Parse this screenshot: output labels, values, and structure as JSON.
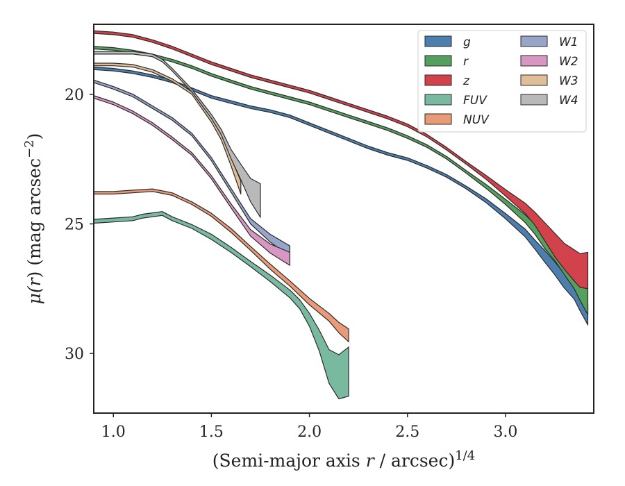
{
  "chart_data": {
    "type": "area",
    "xlabel": "(Semi-major axis r / arcsec)^{1/4}",
    "ylabel": "μ(r) (mag arcsec^{−2})",
    "xlabel_parts": [
      "(Semi-major axis ",
      "r",
      " / arcsec)",
      "1/4"
    ],
    "ylabel_parts": [
      "μ(",
      "r",
      ") (mag arcsec",
      "−2",
      ")"
    ],
    "xlim": [
      0.9,
      3.45
    ],
    "ylim": [
      32.3,
      17.3
    ],
    "y_inverted": true,
    "xticks": [
      1.0,
      1.5,
      2.0,
      2.5,
      3.0
    ],
    "xtick_labels": [
      "1.0",
      "1.5",
      "2.0",
      "2.5",
      "3.0"
    ],
    "yticks": [
      20,
      25,
      30
    ],
    "ytick_labels": [
      "20",
      "25",
      "30"
    ],
    "grid": false,
    "legend_position": "top-right",
    "legend_columns": 2,
    "series": [
      {
        "name": "g",
        "color": "#4c7fae",
        "x": [
          0.9,
          1.0,
          1.1,
          1.2,
          1.3,
          1.4,
          1.5,
          1.6,
          1.7,
          1.8,
          1.9,
          2.0,
          2.1,
          2.2,
          2.3,
          2.4,
          2.5,
          2.6,
          2.7,
          2.8,
          2.9,
          3.0,
          3.1,
          3.15,
          3.2,
          3.25,
          3.3,
          3.35,
          3.38,
          3.42
        ],
        "mu": [
          19.0,
          19.05,
          19.15,
          19.3,
          19.5,
          19.8,
          20.1,
          20.3,
          20.5,
          20.65,
          20.85,
          21.15,
          21.45,
          21.75,
          22.05,
          22.3,
          22.5,
          22.8,
          23.15,
          23.6,
          24.1,
          24.7,
          25.35,
          25.8,
          26.25,
          26.7,
          27.2,
          27.6,
          28.0,
          28.5
        ],
        "band": [
          0.1,
          0.1,
          0.1,
          0.1,
          0.1,
          0.1,
          0.1,
          0.1,
          0.1,
          0.1,
          0.1,
          0.1,
          0.1,
          0.1,
          0.1,
          0.1,
          0.1,
          0.1,
          0.1,
          0.1,
          0.15,
          0.2,
          0.3,
          0.35,
          0.45,
          0.5,
          0.55,
          0.6,
          0.7,
          0.8
        ]
      },
      {
        "name": "r",
        "color": "#55a05e",
        "x": [
          0.9,
          1.0,
          1.1,
          1.2,
          1.3,
          1.4,
          1.5,
          1.6,
          1.7,
          1.8,
          1.9,
          2.0,
          2.1,
          2.2,
          2.3,
          2.4,
          2.5,
          2.6,
          2.7,
          2.8,
          2.9,
          3.0,
          3.1,
          3.15,
          3.2,
          3.25,
          3.3,
          3.35,
          3.38,
          3.42
        ],
        "mu": [
          18.2,
          18.25,
          18.35,
          18.5,
          18.7,
          18.95,
          19.25,
          19.5,
          19.75,
          19.95,
          20.15,
          20.35,
          20.6,
          20.85,
          21.1,
          21.35,
          21.65,
          22.0,
          22.45,
          23.0,
          23.55,
          24.15,
          24.8,
          25.2,
          25.7,
          26.1,
          26.6,
          27.1,
          27.5,
          28.0
        ],
        "band": [
          0.1,
          0.1,
          0.1,
          0.1,
          0.1,
          0.1,
          0.1,
          0.1,
          0.1,
          0.1,
          0.1,
          0.1,
          0.1,
          0.1,
          0.1,
          0.1,
          0.1,
          0.1,
          0.1,
          0.1,
          0.15,
          0.2,
          0.3,
          0.4,
          0.5,
          0.6,
          0.7,
          0.8,
          0.9,
          1.0
        ]
      },
      {
        "name": "z",
        "color": "#d2424a",
        "x": [
          0.9,
          1.0,
          1.1,
          1.2,
          1.3,
          1.4,
          1.5,
          1.6,
          1.7,
          1.8,
          1.9,
          2.0,
          2.1,
          2.2,
          2.3,
          2.4,
          2.5,
          2.6,
          2.7,
          2.8,
          2.9,
          3.0,
          3.1,
          3.15,
          3.2,
          3.25,
          3.3,
          3.35,
          3.38,
          3.42
        ],
        "mu": [
          17.6,
          17.65,
          17.75,
          17.95,
          18.2,
          18.5,
          18.8,
          19.05,
          19.3,
          19.5,
          19.7,
          19.9,
          20.15,
          20.4,
          20.65,
          20.9,
          21.2,
          21.6,
          22.1,
          22.65,
          23.2,
          23.8,
          24.4,
          24.8,
          25.3,
          25.8,
          26.25,
          26.6,
          26.8,
          26.8
        ],
        "band": [
          0.1,
          0.1,
          0.1,
          0.1,
          0.1,
          0.1,
          0.1,
          0.1,
          0.1,
          0.1,
          0.1,
          0.1,
          0.1,
          0.1,
          0.1,
          0.1,
          0.1,
          0.1,
          0.1,
          0.1,
          0.15,
          0.25,
          0.4,
          0.5,
          0.7,
          0.9,
          1.0,
          1.2,
          1.3,
          1.4
        ]
      },
      {
        "name": "FUV",
        "color": "#78b9a0",
        "x": [
          0.9,
          1.0,
          1.1,
          1.15,
          1.2,
          1.25,
          1.3,
          1.4,
          1.5,
          1.6,
          1.7,
          1.8,
          1.9,
          1.95,
          2.0,
          2.05,
          2.1,
          2.15,
          2.2
        ],
        "mu": [
          24.9,
          24.85,
          24.8,
          24.7,
          24.65,
          24.6,
          24.8,
          25.1,
          25.5,
          26.0,
          26.55,
          27.1,
          27.7,
          28.1,
          28.7,
          29.5,
          30.5,
          30.9,
          30.7
        ],
        "band": [
          0.15,
          0.15,
          0.15,
          0.15,
          0.15,
          0.15,
          0.15,
          0.15,
          0.2,
          0.2,
          0.2,
          0.25,
          0.3,
          0.35,
          0.5,
          0.8,
          1.3,
          1.7,
          1.9
        ]
      },
      {
        "name": "NUV",
        "color": "#e99a77",
        "x": [
          0.9,
          1.0,
          1.1,
          1.2,
          1.3,
          1.4,
          1.5,
          1.6,
          1.7,
          1.8,
          1.9,
          2.0,
          2.1,
          2.15,
          2.2
        ],
        "mu": [
          23.8,
          23.8,
          23.75,
          23.7,
          23.85,
          24.2,
          24.65,
          25.25,
          25.95,
          26.65,
          27.3,
          28.0,
          28.6,
          29.0,
          29.3
        ],
        "band": [
          0.1,
          0.1,
          0.1,
          0.1,
          0.1,
          0.1,
          0.12,
          0.15,
          0.15,
          0.2,
          0.2,
          0.25,
          0.3,
          0.4,
          0.5
        ]
      },
      {
        "name": "W1",
        "color": "#97a6c8",
        "x": [
          0.9,
          1.0,
          1.1,
          1.2,
          1.3,
          1.4,
          1.5,
          1.6,
          1.7,
          1.8,
          1.9
        ],
        "mu": [
          19.5,
          19.75,
          20.05,
          20.5,
          20.95,
          21.55,
          22.5,
          23.7,
          24.9,
          25.55,
          26.05
        ],
        "band": [
          0.1,
          0.1,
          0.1,
          0.1,
          0.1,
          0.1,
          0.12,
          0.15,
          0.2,
          0.3,
          0.4
        ]
      },
      {
        "name": "W2",
        "color": "#d896c3",
        "x": [
          0.9,
          1.0,
          1.1,
          1.2,
          1.3,
          1.4,
          1.5,
          1.6,
          1.7,
          1.8,
          1.9
        ],
        "mu": [
          20.1,
          20.35,
          20.7,
          21.15,
          21.7,
          22.3,
          23.2,
          24.3,
          25.35,
          25.95,
          26.35
        ],
        "band": [
          0.1,
          0.1,
          0.1,
          0.1,
          0.1,
          0.1,
          0.12,
          0.15,
          0.25,
          0.35,
          0.5
        ]
      },
      {
        "name": "W3",
        "color": "#dfbe98",
        "x": [
          0.9,
          1.0,
          1.1,
          1.2,
          1.3,
          1.4,
          1.5,
          1.55,
          1.6,
          1.65
        ],
        "mu": [
          18.85,
          18.85,
          18.9,
          19.1,
          19.45,
          19.95,
          21.0,
          21.65,
          22.6,
          23.6
        ],
        "band": [
          0.1,
          0.1,
          0.1,
          0.1,
          0.1,
          0.1,
          0.15,
          0.2,
          0.3,
          0.5
        ]
      },
      {
        "name": "W4",
        "color": "#b9b9b9",
        "x": [
          0.9,
          1.0,
          1.1,
          1.2,
          1.25,
          1.3,
          1.4,
          1.5,
          1.55,
          1.6,
          1.65,
          1.7,
          1.75
        ],
        "mu": [
          18.4,
          18.4,
          18.4,
          18.5,
          18.7,
          19.05,
          19.85,
          20.85,
          21.45,
          22.3,
          23.0,
          23.7,
          24.1
        ],
        "band": [
          0.1,
          0.1,
          0.1,
          0.1,
          0.1,
          0.1,
          0.1,
          0.15,
          0.2,
          0.35,
          0.6,
          0.9,
          1.3
        ]
      }
    ]
  }
}
